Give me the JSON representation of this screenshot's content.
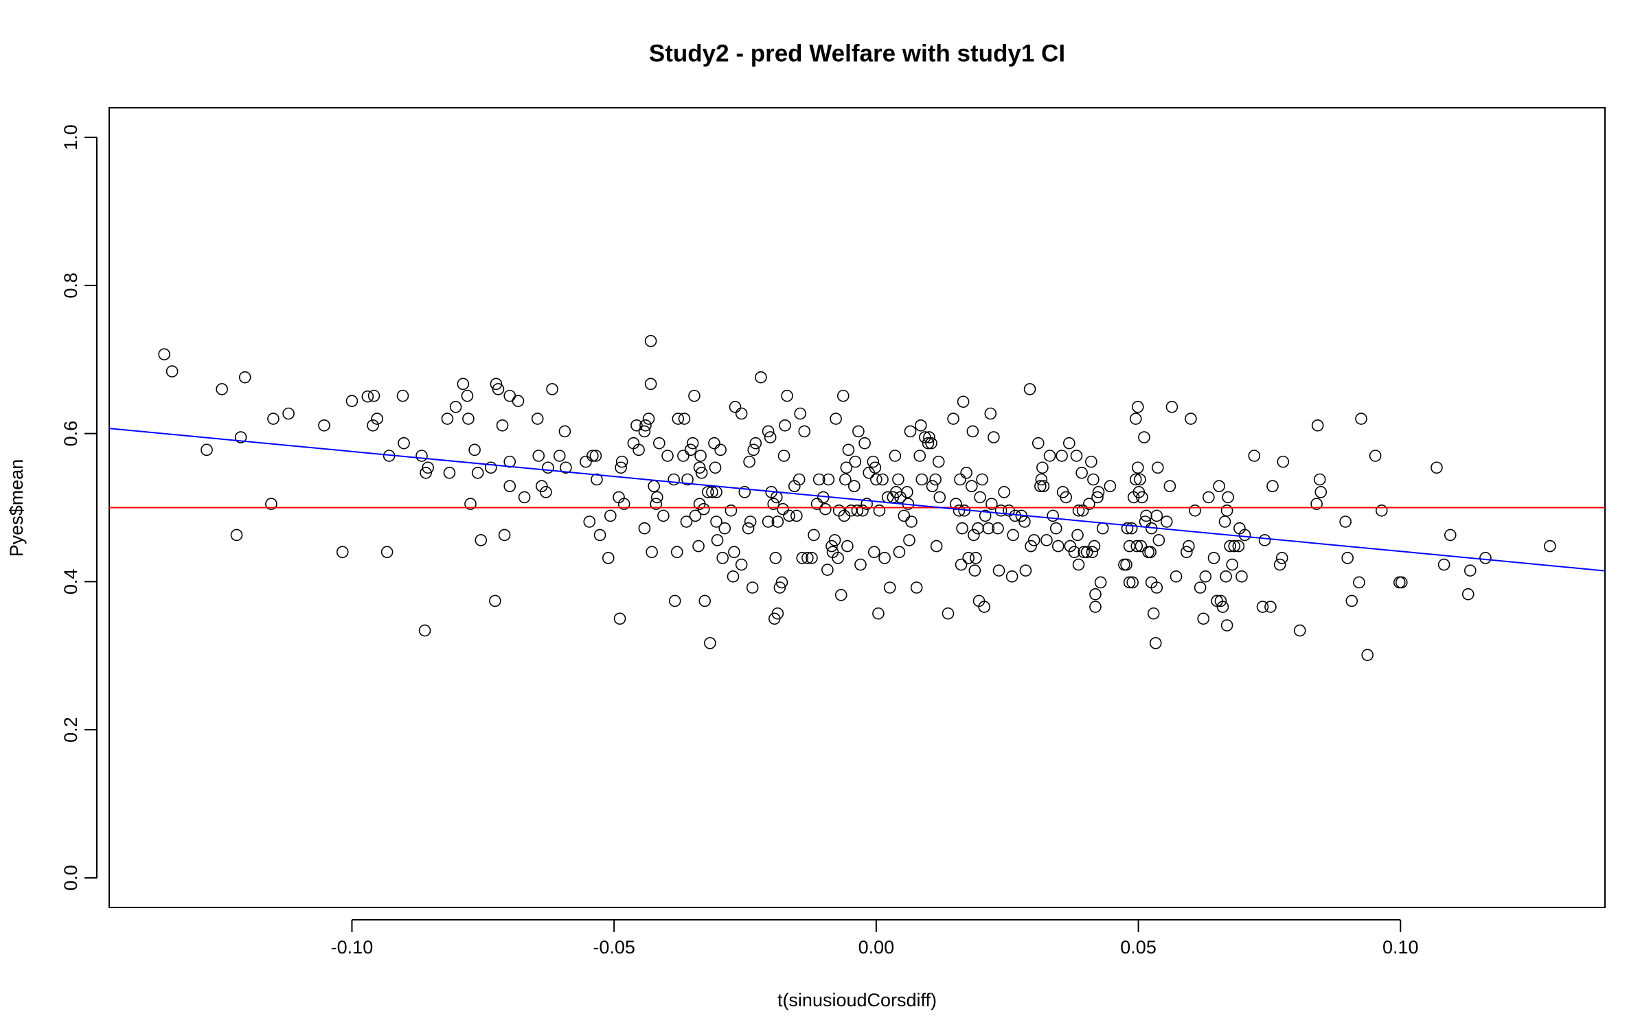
{
  "chart_data": {
    "type": "scatter",
    "title": "Study2 - pred Welfare with study1 CI",
    "x_label": "t(sinusioudCorsdiff)",
    "y_label": "Pyes$mean",
    "xlim": [
      -0.1463,
      0.139
    ],
    "ylim": [
      -0.04,
      1.04
    ],
    "xticks": [
      {
        "value": -0.1,
        "label": "-0.10"
      },
      -0.05,
      {
        "value": 0,
        "label": "0.00"
      },
      0.05,
      {
        "value": 0.1,
        "label": "0.10"
      }
    ],
    "yticks": [
      {
        "value": 0,
        "label": "0.0"
      },
      0.2,
      0.4,
      0.6,
      0.8,
      {
        "value": 1,
        "label": "1.0"
      }
    ],
    "point_color": "#000000",
    "lines": [
      {
        "color": "#0000ff",
        "x": [
          -0.1463,
          0.139
        ],
        "y": [
          0.607,
          0.4146
        ]
      }
    ],
    "hlines": [
      {
        "color": "#ff0000",
        "y": 0.5
      }
    ],
    "x": [
      -0.1358,
      -0.1343,
      -0.1277,
      -0.1248,
      -0.122,
      -0.1212,
      -0.1204,
      -0.1154,
      -0.115,
      -0.1121,
      -0.1053,
      -0.1018,
      -0.1,
      -0.097,
      -0.096,
      -0.0958,
      -0.0952,
      -0.0933,
      -0.0929,
      -0.0903,
      -0.0901,
      -0.0867,
      -0.0861,
      -0.0859,
      -0.0855,
      -0.0818,
      -0.0814,
      -0.0802,
      -0.0788,
      -0.078,
      -0.0778,
      -0.0774,
      -0.0766,
      -0.076,
      -0.0754,
      -0.0735,
      -0.0727,
      -0.0725,
      -0.0721,
      -0.0713,
      -0.0709,
      -0.0699,
      -0.0699,
      -0.0699,
      -0.0683,
      -0.0671,
      -0.0646,
      -0.0644,
      -0.0638,
      -0.063,
      -0.0626,
      -0.0618,
      -0.0604,
      -0.0594,
      -0.0592,
      -0.0554,
      -0.0547,
      -0.0541,
      -0.0535,
      -0.0533,
      -0.0527,
      -0.0511,
      -0.0507,
      -0.0491,
      -0.0489,
      -0.0487,
      -0.0485,
      -0.0481,
      -0.0463,
      -0.0457,
      -0.0453,
      -0.0442,
      -0.0442,
      -0.044,
      -0.0434,
      -0.043,
      -0.043,
      -0.0428,
      -0.0424,
      -0.042,
      -0.0418,
      -0.0414,
      -0.0406,
      -0.0398,
      -0.0386,
      -0.0384,
      -0.038,
      -0.0378,
      -0.0368,
      -0.0366,
      -0.0362,
      -0.036,
      -0.0354,
      -0.035,
      -0.0347,
      -0.0345,
      -0.0339,
      -0.0337,
      -0.0337,
      -0.0335,
      -0.0333,
      -0.0329,
      -0.0327,
      -0.0321,
      -0.0317,
      -0.0313,
      -0.0309,
      -0.0307,
      -0.0305,
      -0.0305,
      -0.0303,
      -0.0297,
      -0.0293,
      -0.0289,
      -0.0277,
      -0.0273,
      -0.0271,
      -0.0269,
      -0.0257,
      -0.0257,
      -0.0251,
      -0.0244,
      -0.0242,
      -0.024,
      -0.0236,
      -0.0234,
      -0.023,
      -0.022,
      -0.0206,
      -0.0206,
      -0.0202,
      -0.02,
      -0.0196,
      -0.0194,
      -0.0192,
      -0.019,
      -0.0188,
      -0.0188,
      -0.0184,
      -0.018,
      -0.0178,
      -0.0176,
      -0.0174,
      -0.017,
      -0.0166,
      -0.0156,
      -0.0152,
      -0.0147,
      -0.0145,
      -0.0141,
      -0.0137,
      -0.0131,
      -0.0123,
      -0.0119,
      -0.0113,
      -0.0109,
      -0.0101,
      -0.0097,
      -0.0093,
      -0.0091,
      -0.0085,
      -0.0083,
      -0.0079,
      -0.0077,
      -0.0073,
      -0.0071,
      -0.0067,
      -0.0063,
      -0.0061,
      -0.0059,
      -0.0057,
      -0.0055,
      -0.0053,
      -0.0048,
      -0.0042,
      -0.004,
      -0.0036,
      -0.0034,
      -0.003,
      -0.0026,
      -0.0022,
      -0.0018,
      -0.0014,
      -0.0006,
      -0.0004,
      -0.0002,
      0,
      0.0004,
      0.0006,
      0.0012,
      0.0016,
      0.0022,
      0.0026,
      0.0032,
      0.0036,
      0.0038,
      0.0042,
      0.0044,
      0.0046,
      0.0053,
      0.0059,
      0.0061,
      0.0063,
      0.0065,
      0.0067,
      0.0077,
      0.0083,
      0.0085,
      0.0087,
      0.0093,
      0.0099,
      0.0101,
      0.0105,
      0.0107,
      0.0113,
      0.0115,
      0.0119,
      0.0121,
      0.0137,
      0.0147,
      0.0152,
      0.0158,
      0.016,
      0.0162,
      0.0164,
      0.0166,
      0.0168,
      0.0172,
      0.0176,
      0.0182,
      0.0184,
      0.0186,
      0.0188,
      0.019,
      0.0194,
      0.0196,
      0.0198,
      0.0202,
      0.0206,
      0.0208,
      0.0214,
      0.0218,
      0.022,
      0.0224,
      0.0232,
      0.0234,
      0.0238,
      0.0244,
      0.0253,
      0.0259,
      0.0261,
      0.0265,
      0.0277,
      0.0283,
      0.0285,
      0.0293,
      0.0295,
      0.0301,
      0.0309,
      0.0313,
      0.0315,
      0.0317,
      0.0319,
      0.0325,
      0.0331,
      0.0337,
      0.0343,
      0.0347,
      0.0354,
      0.0356,
      0.0362,
      0.0368,
      0.037,
      0.0378,
      0.0382,
      0.0384,
      0.0386,
      0.0386,
      0.0392,
      0.0394,
      0.0396,
      0.0402,
      0.0406,
      0.041,
      0.0412,
      0.0414,
      0.0416,
      0.0418,
      0.0418,
      0.0422,
      0.0424,
      0.0428,
      0.0432,
      0.0446,
      0.0473,
      0.0477,
      0.0479,
      0.0483,
      0.0483,
      0.0487,
      0.0489,
      0.0491,
      0.0495,
      0.0495,
      0.0497,
      0.0499,
      0.0499,
      0.0501,
      0.0503,
      0.0505,
      0.0507,
      0.0511,
      0.0513,
      0.0515,
      0.0519,
      0.0523,
      0.0525,
      0.0525,
      0.0529,
      0.0533,
      0.0535,
      0.0537,
      0.0539,
      0.0535,
      0.0554,
      0.056,
      0.0564,
      0.0572,
      0.0592,
      0.0596,
      0.06,
      0.0608,
      0.0618,
      0.0624,
      0.0628,
      0.0634,
      0.0644,
      0.065,
      0.0654,
      0.0657,
      0.0661,
      0.0665,
      0.0667,
      0.0669,
      0.0669,
      0.0671,
      0.0675,
      0.0679,
      0.0683,
      0.0691,
      0.0693,
      0.0697,
      0.0703,
      0.0721,
      0.0737,
      0.0741,
      0.0752,
      0.0756,
      0.077,
      0.0774,
      0.0776,
      0.0808,
      0.084,
      0.0842,
      0.0846,
      0.0848,
      0.0895,
      0.0899,
      0.0907,
      0.0921,
      0.0925,
      0.0937,
      0.0952,
      0.0964,
      0.0998,
      0.1002,
      0.1069,
      0.1083,
      0.1095,
      0.1129,
      0.1133,
      0.1162,
      0.1285
    ],
    "y": [
      0.707,
      0.684,
      0.578,
      0.66,
      0.463,
      0.595,
      0.676,
      0.505,
      0.62,
      0.627,
      0.611,
      0.44,
      0.644,
      0.65,
      0.611,
      0.651,
      0.62,
      0.44,
      0.57,
      0.651,
      0.587,
      0.57,
      0.334,
      0.547,
      0.554,
      0.62,
      0.547,
      0.636,
      0.667,
      0.651,
      0.62,
      0.505,
      0.578,
      0.547,
      0.456,
      0.554,
      0.374,
      0.667,
      0.66,
      0.611,
      0.463,
      0.562,
      0.651,
      0.529,
      0.644,
      0.514,
      0.62,
      0.57,
      0.529,
      0.521,
      0.554,
      0.66,
      0.57,
      0.603,
      0.554,
      0.562,
      0.481,
      0.57,
      0.57,
      0.538,
      0.463,
      0.432,
      0.489,
      0.514,
      0.35,
      0.554,
      0.562,
      0.505,
      0.587,
      0.611,
      0.578,
      0.472,
      0.603,
      0.611,
      0.62,
      0.725,
      0.667,
      0.44,
      0.529,
      0.505,
      0.514,
      0.587,
      0.489,
      0.57,
      0.538,
      0.374,
      0.44,
      0.62,
      0.57,
      0.62,
      0.481,
      0.538,
      0.578,
      0.587,
      0.651,
      0.489,
      0.448,
      0.554,
      0.505,
      0.57,
      0.547,
      0.498,
      0.374,
      0.521,
      0.317,
      0.521,
      0.587,
      0.554,
      0.481,
      0.521,
      0.456,
      0.578,
      0.432,
      0.472,
      0.496,
      0.407,
      0.44,
      0.636,
      0.423,
      0.627,
      0.521,
      0.472,
      0.562,
      0.481,
      0.392,
      0.578,
      0.587,
      0.676,
      0.603,
      0.481,
      0.595,
      0.521,
      0.505,
      0.35,
      0.432,
      0.514,
      0.357,
      0.481,
      0.392,
      0.399,
      0.498,
      0.57,
      0.611,
      0.651,
      0.489,
      0.529,
      0.489,
      0.538,
      0.627,
      0.432,
      0.603,
      0.432,
      0.432,
      0.463,
      0.505,
      0.538,
      0.514,
      0.498,
      0.416,
      0.538,
      0.448,
      0.44,
      0.456,
      0.62,
      0.432,
      0.496,
      0.382,
      0.651,
      0.489,
      0.538,
      0.554,
      0.448,
      0.578,
      0.496,
      0.529,
      0.562,
      0.496,
      0.603,
      0.423,
      0.496,
      0.587,
      0.505,
      0.547,
      0.562,
      0.44,
      0.554,
      0.538,
      0.357,
      0.496,
      0.538,
      0.432,
      0.514,
      0.392,
      0.514,
      0.57,
      0.521,
      0.538,
      0.44,
      0.514,
      0.489,
      0.521,
      0.505,
      0.456,
      0.603,
      0.481,
      0.392,
      0.57,
      0.611,
      0.538,
      0.595,
      0.587,
      0.595,
      0.587,
      0.529,
      0.538,
      0.448,
      0.562,
      0.514,
      0.357,
      0.62,
      0.505,
      0.496,
      0.538,
      0.423,
      0.472,
      0.643,
      0.496,
      0.547,
      0.432,
      0.529,
      0.603,
      0.463,
      0.415,
      0.432,
      0.472,
      0.374,
      0.514,
      0.538,
      0.366,
      0.489,
      0.472,
      0.627,
      0.505,
      0.595,
      0.472,
      0.415,
      0.496,
      0.521,
      0.496,
      0.407,
      0.463,
      0.489,
      0.489,
      0.481,
      0.415,
      0.66,
      0.448,
      0.456,
      0.587,
      0.529,
      0.538,
      0.554,
      0.529,
      0.456,
      0.57,
      0.489,
      0.472,
      0.448,
      0.57,
      0.521,
      0.514,
      0.587,
      0.448,
      0.44,
      0.57,
      0.463,
      0.496,
      0.423,
      0.547,
      0.496,
      0.44,
      0.44,
      0.505,
      0.562,
      0.44,
      0.538,
      0.448,
      0.383,
      0.366,
      0.514,
      0.521,
      0.399,
      0.472,
      0.529,
      0.423,
      0.423,
      0.472,
      0.399,
      0.448,
      0.472,
      0.399,
      0.514,
      0.62,
      0.538,
      0.448,
      0.636,
      0.554,
      0.521,
      0.538,
      0.448,
      0.514,
      0.595,
      0.481,
      0.489,
      0.44,
      0.44,
      0.472,
      0.399,
      0.357,
      0.317,
      0.489,
      0.554,
      0.456,
      0.392,
      0.481,
      0.529,
      0.636,
      0.407,
      0.44,
      0.448,
      0.62,
      0.496,
      0.392,
      0.35,
      0.407,
      0.514,
      0.432,
      0.374,
      0.529,
      0.374,
      0.366,
      0.481,
      0.407,
      0.496,
      0.341,
      0.514,
      0.448,
      0.423,
      0.448,
      0.448,
      0.472,
      0.407,
      0.463,
      0.57,
      0.366,
      0.456,
      0.366,
      0.529,
      0.423,
      0.432,
      0.562,
      0.334,
      0.505,
      0.611,
      0.538,
      0.521,
      0.481,
      0.432,
      0.374,
      0.399,
      0.62,
      0.301,
      0.57,
      0.496,
      0.399,
      0.399,
      0.554,
      0.423,
      0.463,
      0.383,
      0.415,
      0.432,
      0.448
    ]
  }
}
